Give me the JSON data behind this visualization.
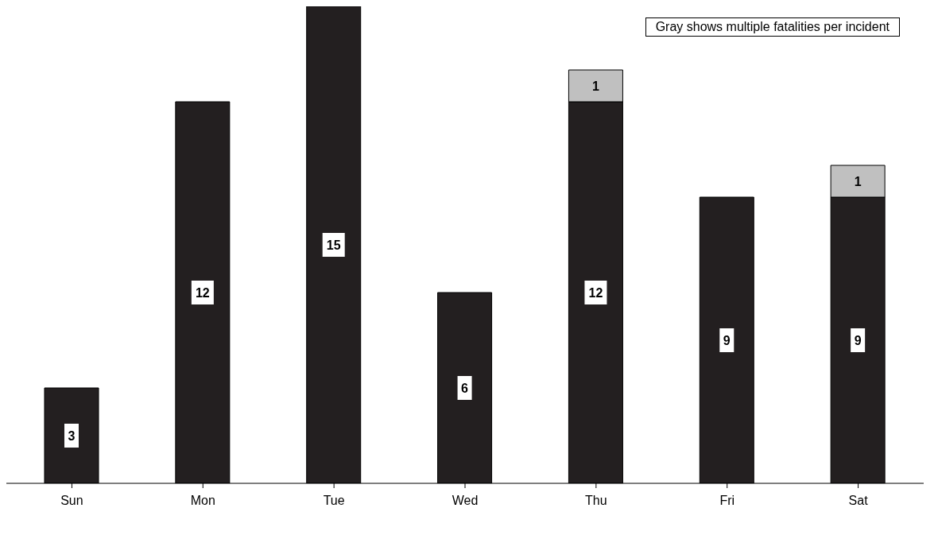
{
  "chart_data": {
    "type": "bar",
    "stacked": true,
    "categories": [
      "Sun",
      "Mon",
      "Tue",
      "Wed",
      "Thu",
      "Fri",
      "Sat"
    ],
    "series": [
      {
        "color": "#231f20",
        "values": [
          3,
          12,
          15,
          6,
          12,
          9,
          9
        ]
      },
      {
        "color": "#c0c0c0",
        "values": [
          null,
          null,
          null,
          null,
          1,
          null,
          1
        ]
      }
    ],
    "ylim": [
      0,
      15
    ],
    "tick_labels": "x",
    "data_labels": true,
    "annotations": [
      "Gray shows multiple fatalities per incident"
    ]
  }
}
